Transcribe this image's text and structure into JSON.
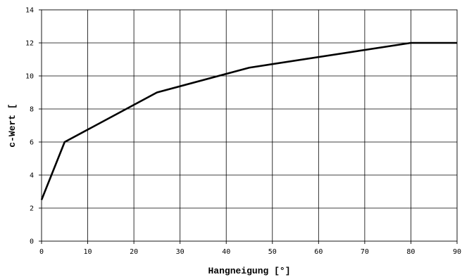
{
  "chart_data": {
    "type": "line",
    "xlabel": "Hangneigung [°]",
    "ylabel": "c-Wert   [",
    "xlim": [
      0,
      90
    ],
    "ylim": [
      0,
      14
    ],
    "x_ticks": [
      0,
      10,
      20,
      30,
      40,
      50,
      60,
      70,
      80,
      90
    ],
    "y_ticks": [
      0,
      2,
      4,
      6,
      8,
      10,
      12,
      14
    ],
    "grid": true,
    "legend": "none",
    "series": [
      {
        "x": [
          0,
          5,
          25,
          45,
          80,
          90
        ],
        "y": [
          2.5,
          6,
          9,
          10.5,
          12,
          12
        ],
        "color": "#000000"
      }
    ]
  }
}
